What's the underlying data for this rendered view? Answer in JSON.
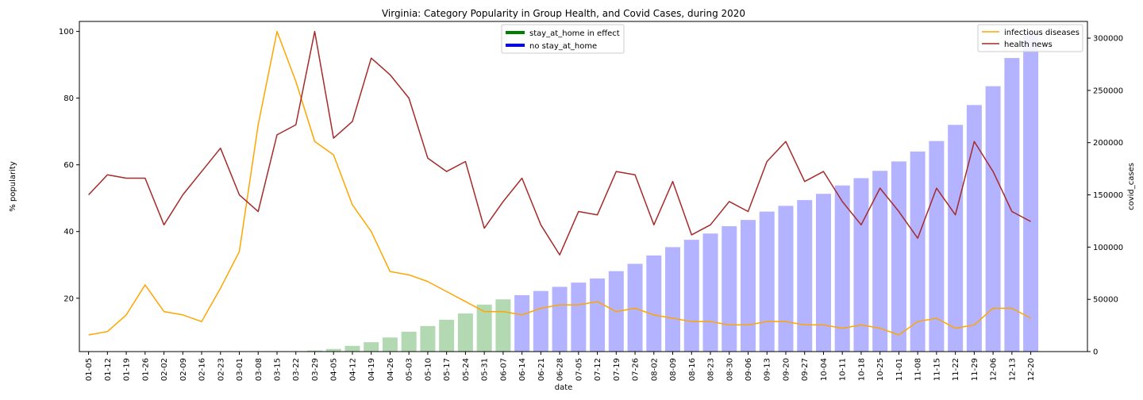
{
  "chart_data": {
    "type": "bar+line",
    "title": "Virginia: Category Popularity in Group Health, and Covid Cases, during 2020",
    "xlabel": "date",
    "ylabel_left": "% popularity",
    "ylabel_right": "covid_cases",
    "categories": [
      "01-05",
      "01-12",
      "01-19",
      "01-26",
      "02-02",
      "02-09",
      "02-16",
      "02-23",
      "03-01",
      "03-08",
      "03-15",
      "03-22",
      "03-29",
      "04-05",
      "04-12",
      "04-19",
      "04-26",
      "05-03",
      "05-10",
      "05-17",
      "05-24",
      "05-31",
      "06-07",
      "06-14",
      "06-21",
      "06-28",
      "07-05",
      "07-12",
      "07-19",
      "07-26",
      "08-02",
      "08-09",
      "08-16",
      "08-23",
      "08-30",
      "09-06",
      "09-13",
      "09-20",
      "09-27",
      "10-04",
      "10-11",
      "10-18",
      "10-25",
      "11-01",
      "11-08",
      "11-15",
      "11-22",
      "11-29",
      "12-06",
      "12-13",
      "12-20"
    ],
    "ylim_left": [
      4,
      103
    ],
    "yticks_left": [
      20,
      40,
      60,
      80,
      100
    ],
    "ylim_right": [
      0,
      316000
    ],
    "yticks_right": [
      0,
      50000,
      100000,
      150000,
      200000,
      250000,
      300000
    ],
    "bars": {
      "name": "covid_cases",
      "values": [
        0,
        0,
        0,
        0,
        0,
        0,
        0,
        0,
        0,
        0,
        0,
        0,
        1000,
        2500,
        5500,
        9000,
        13500,
        19000,
        24500,
        30500,
        36500,
        45000,
        50000,
        54000,
        58000,
        62000,
        66000,
        70000,
        77000,
        84000,
        92000,
        100000,
        107000,
        113000,
        120000,
        126000,
        134000,
        139500,
        145000,
        151000,
        159000,
        166000,
        173000,
        182000,
        191500,
        201500,
        217000,
        236000,
        254000,
        281000,
        305000
      ],
      "stay_at_home_in_effect": [
        false,
        false,
        false,
        false,
        false,
        false,
        false,
        false,
        false,
        false,
        false,
        false,
        true,
        true,
        true,
        true,
        true,
        true,
        true,
        true,
        true,
        true,
        true,
        false,
        false,
        false,
        false,
        false,
        false,
        false,
        false,
        false,
        false,
        false,
        false,
        false,
        false,
        false,
        false,
        false,
        false,
        false,
        false,
        false,
        false,
        false,
        false,
        false,
        false,
        false,
        false
      ]
    },
    "series": [
      {
        "name": "infectious diseases",
        "color": "#ffa500",
        "values": [
          9,
          10,
          15,
          24,
          16,
          15,
          13,
          23,
          34,
          72,
          100,
          85,
          67,
          63,
          48,
          40,
          28,
          27,
          25,
          22,
          19,
          16,
          16,
          15,
          17,
          18,
          18,
          19,
          16,
          17,
          15,
          14,
          13,
          13,
          12,
          12,
          13,
          13,
          12,
          12,
          11,
          12,
          11,
          9,
          13,
          14,
          11,
          12,
          17,
          17,
          14
        ]
      },
      {
        "name": "health news",
        "color": "#a52a2a",
        "values": [
          51,
          57,
          56,
          56,
          42,
          51,
          58,
          65,
          51,
          46,
          69,
          72,
          100,
          68,
          73,
          92,
          87,
          80,
          62,
          58,
          61,
          41,
          49,
          56,
          42,
          33,
          46,
          45,
          58,
          57,
          42,
          55,
          39,
          42,
          49,
          46,
          61,
          67,
          55,
          58,
          49,
          42,
          53,
          46,
          38,
          53,
          45,
          67,
          58,
          46,
          43
        ]
      }
    ],
    "legend_right": {
      "position": "top-right",
      "entries": [
        "infectious diseases",
        "health news"
      ]
    },
    "legend_center": {
      "position": "top-center",
      "entries": [
        {
          "label": "stay_at_home in effect",
          "color": "#008000"
        },
        {
          "label": "no stay_at_home",
          "color": "#0000ff"
        }
      ]
    },
    "colors": {
      "bar_stay_at_home": "#b3d9b3",
      "bar_no_stay_at_home": "#b3b3ff"
    },
    "grid": false
  }
}
